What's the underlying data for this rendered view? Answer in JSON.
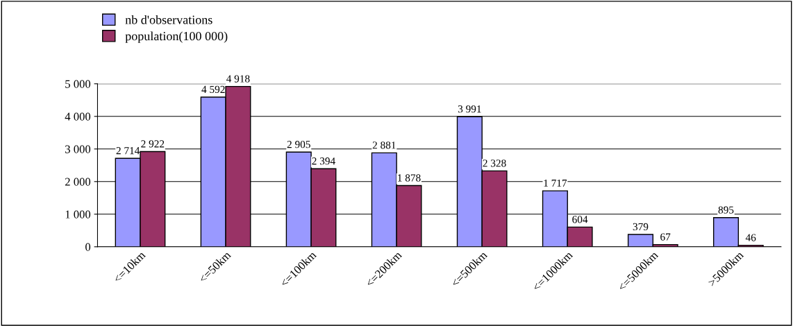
{
  "chart_data": {
    "type": "bar",
    "categories": [
      "<=10km",
      "<=50km",
      "<=100km",
      "<=200km",
      "<=500km",
      "<=1000km",
      "<=5000km",
      ">5000km"
    ],
    "series": [
      {
        "name": "nb d'observations",
        "color": "#9999ff",
        "values": [
          2714,
          4592,
          2905,
          2881,
          3991,
          1717,
          379,
          895
        ],
        "value_labels": [
          "2 714",
          "4 592",
          "2 905",
          "2 881",
          "3 991",
          "1 717",
          "379",
          "895"
        ]
      },
      {
        "name": "population(100 000)",
        "color": "#993366",
        "values": [
          2922,
          4918,
          2394,
          1878,
          2328,
          604,
          67,
          46
        ],
        "value_labels": [
          "2 922",
          "4 918",
          "2 394",
          "1 878",
          "2 328",
          "604",
          "67",
          "46"
        ]
      }
    ],
    "ylim": [
      0,
      5000
    ],
    "yticks": [
      {
        "value": 0,
        "label": "0"
      },
      {
        "value": 1000,
        "label": "1 000"
      },
      {
        "value": 2000,
        "label": "2 000"
      },
      {
        "value": 3000,
        "label": "3 000"
      },
      {
        "value": 4000,
        "label": "4 000"
      },
      {
        "value": 5000,
        "label": "5 000"
      }
    ],
    "grid": "y",
    "legend": "top left"
  }
}
